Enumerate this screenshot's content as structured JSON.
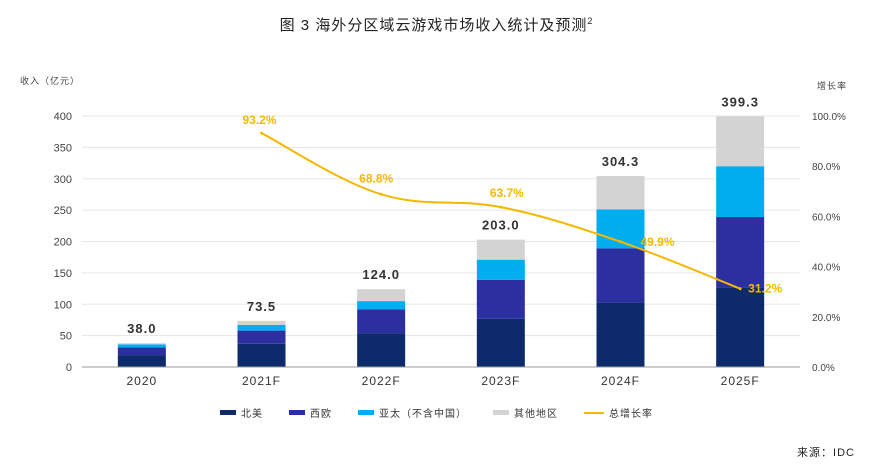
{
  "title": "图 3  海外分区域云游戏市场收入统计及预测",
  "title_sup": "2",
  "source": "来源：IDC",
  "colors": {
    "north_america": "#0d2a6b",
    "western_europe": "#2b2fa0",
    "apac": "#00aeef",
    "other": "#d3d3d3",
    "growth": "#f5b800",
    "grid": "#e6e6e6"
  },
  "chart_data": {
    "type": "bar",
    "title": "图 3  海外分区域云游戏市场收入统计及预测",
    "ylabel": "收入（亿元）",
    "y2label": "增长率",
    "ylim": [
      0,
      400
    ],
    "y2lim": [
      0,
      100
    ],
    "yticks": [
      0,
      50,
      100,
      150,
      200,
      250,
      300,
      350,
      400
    ],
    "y2ticks": [
      "0.0%",
      "20.0%",
      "40.0%",
      "60.0%",
      "80.0%",
      "100.0%"
    ],
    "grid": true,
    "legend_position": "bottom",
    "categories": [
      "2020",
      "2021F",
      "2022F",
      "2023F",
      "2024F",
      "2025F"
    ],
    "totals": [
      "38.0",
      "73.5",
      "124.0",
      "203.0",
      "304.3",
      "399.3"
    ],
    "series": [
      {
        "name": "北美",
        "color": "#0d2a6b",
        "values": [
          19,
          37,
          54,
          77,
          103,
          126
        ]
      },
      {
        "name": "西欧",
        "color": "#2b2fa0",
        "values": [
          12,
          21,
          38,
          62,
          86,
          113
        ]
      },
      {
        "name": "亚太（不含中国）",
        "color": "#00aeef",
        "values": [
          5,
          9,
          13,
          32,
          62,
          81
        ]
      },
      {
        "name": "其他地区",
        "color": "#d3d3d3",
        "values": [
          2,
          6.5,
          19,
          32,
          53.3,
          79.3
        ]
      }
    ],
    "line": {
      "name": "总增长率",
      "color": "#f5b800",
      "categories": [
        "2021F",
        "2022F",
        "2023F",
        "2024F",
        "2025F"
      ],
      "values": [
        93.2,
        68.8,
        63.7,
        49.9,
        31.2
      ],
      "labels": [
        "93.2%",
        "68.8%",
        "63.7%",
        "49.9%",
        "31.2%"
      ]
    }
  }
}
